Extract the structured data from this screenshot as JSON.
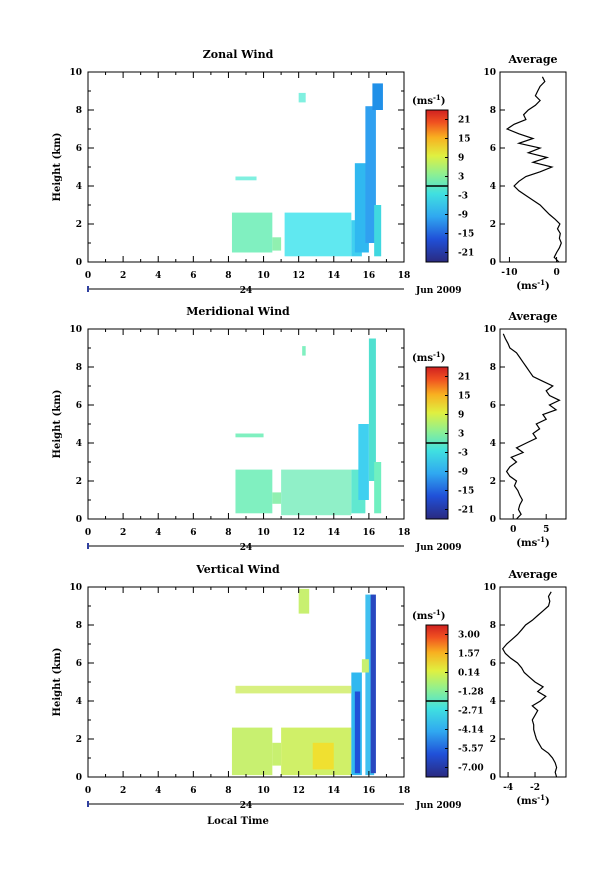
{
  "chart_data": [
    {
      "type": "heatmap",
      "title": "Zonal Wind",
      "ylabel": "Height (km)",
      "xlim": [
        0,
        18
      ],
      "ylim": [
        0,
        10
      ],
      "xticks": [
        "0",
        "2",
        "4",
        "6",
        "8",
        "10",
        "12",
        "14",
        "16",
        "18"
      ],
      "yticks": [
        "0",
        "2",
        "4",
        "6",
        "8",
        "10"
      ],
      "date_day": "24",
      "date_label": "Jun 2009",
      "colorbar": {
        "unit": "(ms",
        "unit_exp": "-1",
        "unit_close": ")",
        "labels": [
          "21",
          "15",
          "9",
          "3",
          "-3",
          "-9",
          "-15",
          "-21"
        ]
      },
      "average": {
        "title": "Average",
        "xlim": [
          -12,
          2
        ],
        "ylim": [
          0,
          10
        ],
        "xticks": [
          "-10",
          "0"
        ],
        "yticks": [
          "0",
          "2",
          "4",
          "6",
          "8",
          "10"
        ],
        "xlabel": "(ms",
        "xlabel_exp": "-1",
        "xlabel_close": ")",
        "profile_height": [
          0.0,
          0.25,
          0.5,
          0.75,
          1.0,
          1.25,
          1.5,
          1.75,
          2.0,
          2.25,
          2.5,
          2.75,
          3.0,
          3.25,
          3.5,
          3.75,
          4.0,
          4.25,
          4.5,
          4.75,
          5.0,
          5.25,
          5.5,
          5.75,
          6.0,
          6.25,
          6.5,
          6.75,
          7.0,
          7.25,
          7.5,
          7.75,
          8.0,
          8.25,
          8.5,
          8.75,
          9.0,
          9.25,
          9.5,
          9.75
        ],
        "profile_value": [
          0.5,
          -0.5,
          0.0,
          0.6,
          1.0,
          0.6,
          0.8,
          0.2,
          0.7,
          -0.3,
          -1.5,
          -2.5,
          -3.5,
          -5.0,
          -6.5,
          -8.0,
          -9.0,
          -8.0,
          -6.5,
          -3.5,
          -1.0,
          -5.0,
          -2.0,
          -6.0,
          -3.5,
          -8.0,
          -5.0,
          -8.0,
          -10.5,
          -9.0,
          -6.5,
          -7.0,
          -6.0,
          -4.5,
          -3.5,
          -4.5,
          -4.0,
          -3.5,
          -2.5,
          -3.0
        ]
      }
    },
    {
      "type": "heatmap",
      "title": "Meridional Wind",
      "ylabel": "Height (km)",
      "xlim": [
        0,
        18
      ],
      "ylim": [
        0,
        10
      ],
      "xticks": [
        "0",
        "2",
        "4",
        "6",
        "8",
        "10",
        "12",
        "14",
        "16",
        "18"
      ],
      "yticks": [
        "0",
        "2",
        "4",
        "6",
        "8",
        "10"
      ],
      "date_day": "24",
      "date_label": "Jun 2009",
      "colorbar": {
        "unit": "(ms",
        "unit_exp": "-1",
        "unit_close": ")",
        "labels": [
          "21",
          "15",
          "9",
          "3",
          "-3",
          "-9",
          "-15",
          "-21"
        ]
      },
      "average": {
        "title": "Average",
        "xlim": [
          -2,
          8
        ],
        "ylim": [
          0,
          10
        ],
        "xticks": [
          "0",
          "5"
        ],
        "yticks": [
          "0",
          "2",
          "4",
          "6",
          "8",
          "10"
        ],
        "xlabel": "(ms",
        "xlabel_exp": "-1",
        "xlabel_close": ")",
        "profile_height": [
          0.0,
          0.25,
          0.5,
          0.75,
          1.0,
          1.25,
          1.5,
          1.75,
          2.0,
          2.25,
          2.5,
          2.75,
          3.0,
          3.25,
          3.5,
          3.75,
          4.0,
          4.25,
          4.5,
          4.75,
          5.0,
          5.25,
          5.5,
          5.75,
          6.0,
          6.25,
          6.5,
          6.75,
          7.0,
          7.25,
          7.5,
          7.75,
          8.0,
          8.25,
          8.5,
          8.75,
          9.0,
          9.25,
          9.5,
          9.75
        ],
        "profile_value": [
          0.5,
          1.2,
          0.8,
          1.0,
          1.4,
          1.0,
          0.7,
          0.2,
          0.5,
          -0.5,
          -1.0,
          -0.5,
          0.5,
          -0.3,
          1.5,
          0.5,
          2.0,
          3.5,
          3.0,
          4.0,
          3.5,
          5.0,
          4.5,
          6.5,
          5.5,
          7.0,
          5.5,
          5.0,
          6.0,
          4.5,
          3.0,
          2.5,
          2.0,
          1.5,
          1.0,
          0.5,
          -0.5,
          -0.8,
          -1.2,
          -1.5
        ]
      }
    },
    {
      "type": "heatmap",
      "title": "Vertical Wind",
      "ylabel": "Height (km)",
      "xlabel": "Local Time",
      "xlim": [
        0,
        18
      ],
      "ylim": [
        0,
        10
      ],
      "xticks": [
        "0",
        "2",
        "4",
        "6",
        "8",
        "10",
        "12",
        "14",
        "16",
        "18"
      ],
      "yticks": [
        "0",
        "2",
        "4",
        "6",
        "8",
        "10"
      ],
      "date_day": "24",
      "date_label": "Jun 2009",
      "colorbar": {
        "unit": "(ms",
        "unit_exp": "-1",
        "unit_close": ")",
        "labels": [
          "3.00",
          "1.57",
          "0.14",
          "-1.28",
          "-2.71",
          "-4.14",
          "-5.57",
          "-7.00"
        ]
      },
      "average": {
        "title": "Average",
        "xlim": [
          -4.6,
          0.3
        ],
        "ylim": [
          0,
          10
        ],
        "xticks": [
          "-4",
          "-2"
        ],
        "yticks": [
          "0",
          "2",
          "4",
          "6",
          "8",
          "10"
        ],
        "xlabel": "(ms",
        "xlabel_exp": "-1",
        "xlabel_close": ")",
        "profile_height": [
          0.0,
          0.25,
          0.5,
          0.75,
          1.0,
          1.25,
          1.5,
          1.75,
          2.0,
          2.25,
          2.5,
          2.75,
          3.0,
          3.25,
          3.5,
          3.75,
          4.0,
          4.25,
          4.5,
          4.75,
          5.0,
          5.25,
          5.5,
          5.75,
          6.0,
          6.25,
          6.5,
          6.75,
          7.0,
          7.25,
          7.5,
          7.75,
          8.0,
          8.25,
          8.5,
          8.75,
          9.0,
          9.25,
          9.5,
          9.75
        ],
        "profile_value": [
          -0.4,
          -0.5,
          -0.4,
          -0.5,
          -0.7,
          -1.0,
          -1.5,
          -1.7,
          -1.9,
          -2.0,
          -2.1,
          -2.1,
          -2.2,
          -2.0,
          -1.8,
          -2.2,
          -1.6,
          -1.2,
          -1.8,
          -1.4,
          -2.0,
          -2.4,
          -2.8,
          -3.0,
          -3.3,
          -3.8,
          -4.2,
          -4.4,
          -4.1,
          -3.7,
          -3.3,
          -3.0,
          -2.7,
          -2.2,
          -1.8,
          -1.4,
          -1.0,
          -0.9,
          -1.0,
          -0.8
        ]
      }
    }
  ]
}
